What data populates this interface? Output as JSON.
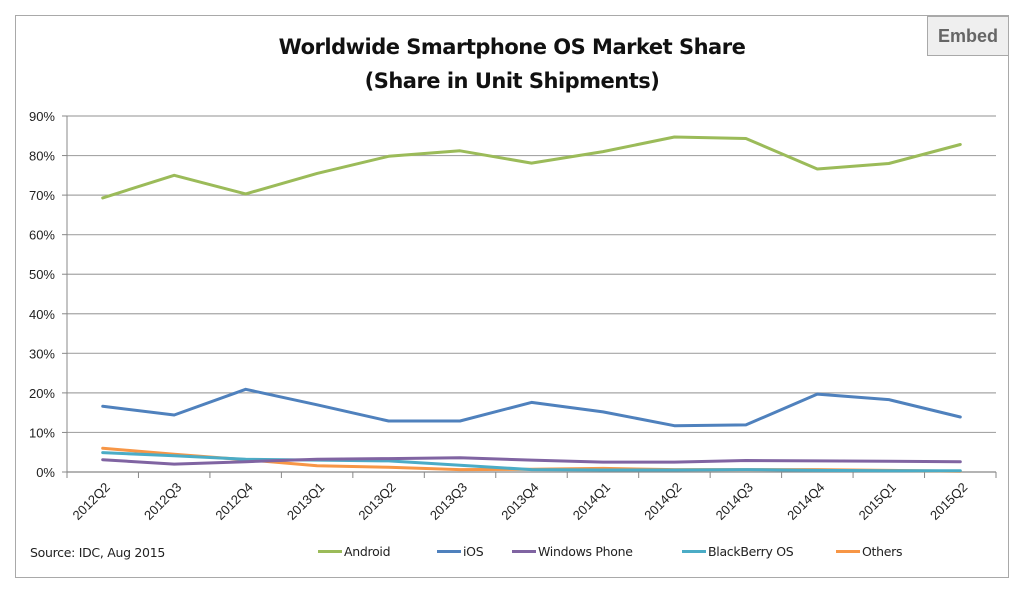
{
  "embed_button": {
    "label": "Embed"
  },
  "source_note": "Source: IDC, Aug 2015",
  "chart_data": {
    "type": "line",
    "title": "Worldwide Smartphone OS Market Share",
    "subtitle": "(Share in Unit Shipments)",
    "xlabel": "",
    "ylabel": "",
    "ylim": [
      0,
      90
    ],
    "y_ticks": [
      "0%",
      "10%",
      "20%",
      "30%",
      "40%",
      "50%",
      "60%",
      "70%",
      "80%",
      "90%"
    ],
    "y_tick_values": [
      0,
      10,
      20,
      30,
      40,
      50,
      60,
      70,
      80,
      90
    ],
    "grid": true,
    "legend_position": "bottom",
    "categories": [
      "2012Q2",
      "2012Q3",
      "2012Q4",
      "2013Q1",
      "2013Q2",
      "2013Q3",
      "2013Q4",
      "2014Q1",
      "2014Q2",
      "2014Q3",
      "2014Q4",
      "2015Q1",
      "2015Q2"
    ],
    "series": [
      {
        "name": "Android",
        "color": "#9bbb59",
        "values": [
          69.3,
          75.0,
          70.3,
          75.5,
          79.8,
          81.2,
          78.1,
          81.0,
          84.7,
          84.3,
          76.6,
          78.0,
          82.8
        ]
      },
      {
        "name": "iOS",
        "color": "#4f81bd",
        "values": [
          16.6,
          14.4,
          20.9,
          17.0,
          12.9,
          12.9,
          17.6,
          15.2,
          11.7,
          11.9,
          19.7,
          18.3,
          13.9
        ]
      },
      {
        "name": "Windows Phone",
        "color": "#8064a2",
        "values": [
          3.1,
          2.0,
          2.6,
          3.2,
          3.4,
          3.6,
          3.0,
          2.5,
          2.5,
          2.9,
          2.8,
          2.7,
          2.6
        ]
      },
      {
        "name": "BlackBerry OS",
        "color": "#4bacc6",
        "values": [
          4.9,
          4.1,
          3.2,
          3.0,
          2.8,
          1.7,
          0.6,
          0.5,
          0.5,
          0.6,
          0.4,
          0.3,
          0.3
        ]
      },
      {
        "name": "Others",
        "color": "#f79646",
        "values": [
          6.0,
          4.5,
          3.1,
          1.6,
          1.2,
          0.6,
          0.7,
          0.9,
          0.6,
          0.6,
          0.6,
          0.4,
          0.2
        ]
      }
    ]
  }
}
